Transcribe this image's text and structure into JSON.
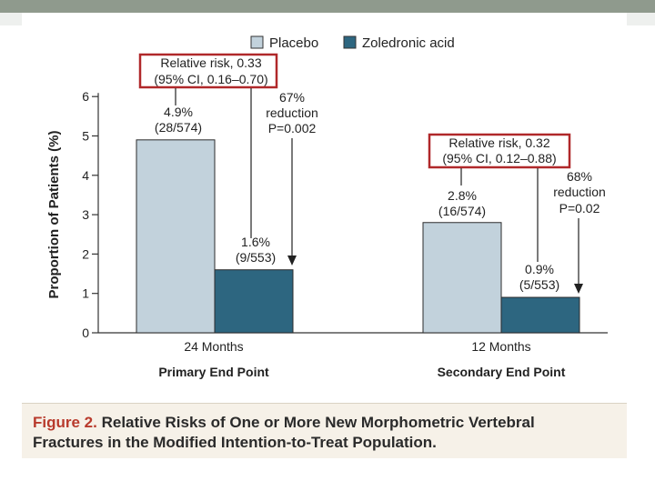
{
  "legend": [
    {
      "name": "Placebo",
      "color": "#c2d2dc"
    },
    {
      "name": "Zoledronic acid",
      "color": "#2d6680"
    }
  ],
  "chart_data": {
    "type": "bar",
    "ylabel": "Proportion of Patients (%)",
    "ylim": [
      0,
      6
    ],
    "yticks": [
      "0",
      "1",
      "2",
      "3",
      "4",
      "5",
      "6"
    ],
    "groups": [
      {
        "period": "24 Months",
        "endpoint": "Primary End Point",
        "placebo": {
          "value": 4.9,
          "label": "4.9%",
          "count": "(28/574)"
        },
        "drug": {
          "value": 1.6,
          "label": "1.6%",
          "count": "(9/553)"
        },
        "rr_line1": "Relative risk, 0.33",
        "rr_line2": "(95% CI, 0.16–0.70)",
        "red_line1": "67%",
        "red_line2": "reduction",
        "red_line3": "P=0.002"
      },
      {
        "period": "12 Months",
        "endpoint": "Secondary End Point",
        "placebo": {
          "value": 2.8,
          "label": "2.8%",
          "count": "(16/574)"
        },
        "drug": {
          "value": 0.9,
          "label": "0.9%",
          "count": "(5/553)"
        },
        "rr_line1": "Relative risk, 0.32",
        "rr_line2": "(95% CI, 0.12–0.88)",
        "red_line1": "68%",
        "red_line2": "reduction",
        "red_line3": "P=0.02"
      }
    ],
    "colors": {
      "placebo": "#c2d2dc",
      "drug": "#2d6680",
      "highlight": "#b0282a",
      "axis": "#333333"
    }
  },
  "caption": {
    "label": "Figure 2.",
    "text": " Relative Risks of One or More New Morphometric Vertebral Fractures in the Modified Intention-to-Treat Population."
  }
}
